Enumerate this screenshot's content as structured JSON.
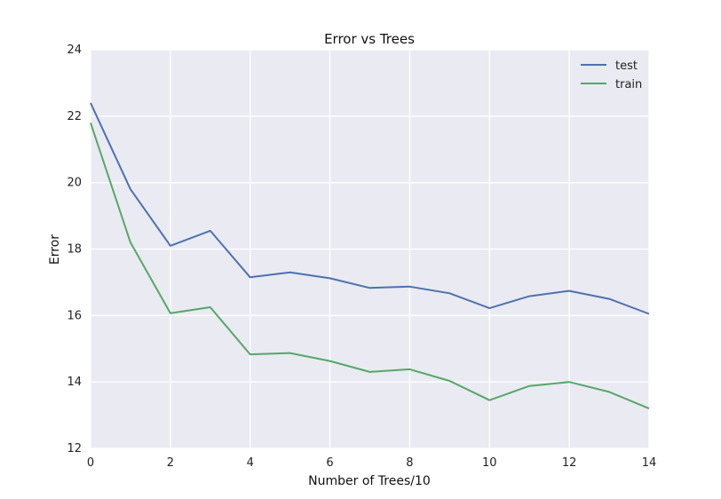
{
  "chart_data": {
    "type": "line",
    "title": "Error vs Trees",
    "xlabel": "Number of Trees/10",
    "ylabel": "Error",
    "xlim": [
      0,
      14
    ],
    "ylim": [
      12,
      24
    ],
    "xticks": [
      0,
      2,
      4,
      6,
      8,
      10,
      12,
      14
    ],
    "yticks": [
      12,
      14,
      16,
      18,
      20,
      22,
      24
    ],
    "grid": true,
    "legend_position": "top-right",
    "x": [
      0,
      1,
      2,
      3,
      4,
      5,
      6,
      7,
      8,
      9,
      10,
      11,
      12,
      13,
      14
    ],
    "series": [
      {
        "name": "test",
        "color": "#4c72b0",
        "values": [
          22.4,
          19.8,
          18.1,
          18.55,
          17.15,
          17.3,
          17.12,
          16.83,
          16.87,
          16.67,
          16.22,
          16.58,
          16.74,
          16.5,
          16.05
        ]
      },
      {
        "name": "train",
        "color": "#55a868",
        "values": [
          21.8,
          18.2,
          16.07,
          16.25,
          14.83,
          14.87,
          14.63,
          14.3,
          14.38,
          14.03,
          13.45,
          13.88,
          14.0,
          13.7,
          13.2
        ]
      }
    ],
    "colors": {
      "plot_background": "#eaeaf2",
      "grid": "#ffffff"
    }
  }
}
